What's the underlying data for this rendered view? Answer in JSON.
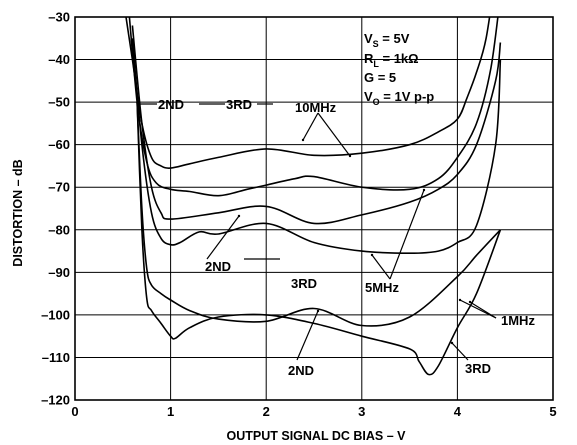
{
  "chart_data": {
    "type": "line",
    "xlabel": "OUTPUT SIGNAL DC BIAS – V",
    "ylabel": "DISTORTION – dB",
    "xlim": [
      0,
      5
    ],
    "ylim": [
      -120,
      -30
    ],
    "x_ticks": [
      "0",
      "1",
      "2",
      "3",
      "4",
      "5"
    ],
    "y_ticks": [
      "–30",
      "–40",
      "–50",
      "–60",
      "–70",
      "–80",
      "–90",
      "–100",
      "–110",
      "–120"
    ],
    "grid": true,
    "conditions": {
      "vs": {
        "main": "V",
        "sub": "S",
        "rest": " = 5V"
      },
      "rl": {
        "main": "R",
        "sub": "L",
        "rest": " = 1kΩ"
      },
      "g": {
        "main": "G = 5"
      },
      "vo": {
        "main": "V",
        "sub": "O",
        "rest": " = 1V p-p"
      }
    },
    "annotations": {
      "tenmhz": "10MHz",
      "fivemhz": "5MHz",
      "onemhz": "1MHz",
      "second_a": "2ND",
      "second_b": "2ND",
      "second_c": "2ND",
      "third_a": "3RD",
      "third_b": "3RD",
      "third_c": "3RD"
    },
    "series": [
      {
        "x": [
          0.5,
          0.6,
          0.7,
          0.8,
          0.9,
          1.0,
          1.2,
          1.5,
          2.0,
          2.5,
          3.0,
          3.5,
          3.8,
          4.0,
          4.1,
          4.2,
          4.3,
          4.4
        ],
        "y": [
          -25,
          -40,
          -55,
          -63,
          -65,
          -65.5,
          -64.5,
          -63,
          -61,
          -62.5,
          -62,
          -60,
          -57,
          -54,
          -49,
          -43,
          -35,
          -20
        ]
      },
      {
        "x": [
          0.55,
          0.65,
          0.75,
          0.85,
          1.0,
          1.2,
          1.5,
          1.8,
          2.0,
          2.3,
          2.5,
          3.0,
          3.5,
          3.8,
          4.0,
          4.2,
          4.35,
          4.45
        ],
        "y": [
          -25,
          -50,
          -64,
          -69,
          -70.5,
          -71,
          -72,
          -70.5,
          -69.5,
          -68,
          -67.5,
          -70,
          -70.5,
          -68,
          -63,
          -55,
          -42,
          -25
        ]
      },
      {
        "x": [
          0.6,
          0.7,
          0.8,
          0.9,
          1.0,
          1.5,
          2.0,
          2.5,
          3.0,
          3.5,
          3.8,
          4.0,
          4.2,
          4.4,
          4.45
        ],
        "y": [
          -32,
          -55,
          -70,
          -76,
          -77.5,
          -76,
          -74.5,
          -78.5,
          -76.5,
          -73.5,
          -70.5,
          -67,
          -60,
          -45,
          -36
        ]
      },
      {
        "x": [
          0.6,
          0.7,
          0.8,
          0.9,
          1.0,
          1.1,
          1.3,
          1.5,
          2.0,
          2.5,
          3.0,
          3.5,
          3.8,
          4.0,
          4.2,
          4.4,
          4.45
        ],
        "y": [
          -35,
          -60,
          -76,
          -82,
          -83.5,
          -83,
          -80.5,
          -81,
          -78.5,
          -83,
          -85,
          -85.5,
          -85,
          -83,
          -79,
          -60,
          -40
        ]
      },
      {
        "x": [
          0.65,
          0.7,
          0.75,
          0.8,
          0.9,
          1.0,
          1.2,
          1.5,
          2.0,
          2.5,
          3.0,
          3.5,
          4.0,
          4.2,
          4.45
        ],
        "y": [
          -50,
          -75,
          -89,
          -93,
          -95,
          -96.5,
          -99,
          -101,
          -101.5,
          -98.5,
          -102.5,
          -100.5,
          -91,
          -86,
          -80
        ]
      },
      {
        "x": [
          0.65,
          0.7,
          0.75,
          0.8,
          0.9,
          1.0,
          1.05,
          1.2,
          1.5,
          2.0,
          2.5,
          3.0,
          3.5,
          3.6,
          3.7,
          3.8,
          4.0,
          4.2,
          4.45
        ],
        "y": [
          -50,
          -80,
          -96,
          -99,
          -102,
          -105,
          -105.5,
          -103,
          -100.5,
          -100,
          -102,
          -105,
          -108,
          -111,
          -114,
          -112,
          -103,
          -95,
          -80
        ]
      }
    ]
  }
}
